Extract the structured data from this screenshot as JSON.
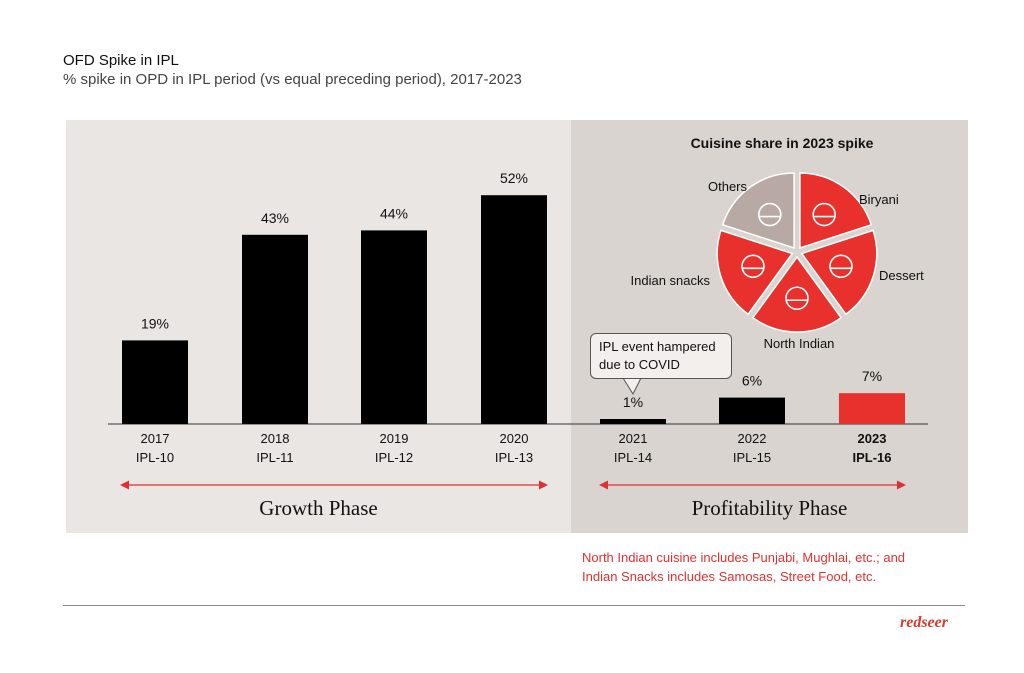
{
  "header": {
    "title": "OFD Spike in IPL",
    "subtitle": "% spike in OPD in IPL period (vs equal preceding period), 2017-2023"
  },
  "colors": {
    "bar": "#000000",
    "highlight": "#e8302c",
    "pie_other": "#b9a9a5",
    "phase_arrow": "#e0312e"
  },
  "chart_data": [
    {
      "type": "bar",
      "title": "OFD Spike in IPL",
      "subtitle": "% spike in OPD in IPL period (vs equal preceding period), 2017-2023",
      "categories": [
        "2017",
        "2018",
        "2019",
        "2020",
        "2021",
        "2022",
        "2023"
      ],
      "category_sublabels": [
        "IPL-10",
        "IPL-11",
        "IPL-12",
        "IPL-13",
        "IPL-14",
        "IPL-15",
        "IPL-16"
      ],
      "values": [
        19,
        43,
        44,
        52,
        1,
        6,
        7
      ],
      "value_labels": [
        "19%",
        "43%",
        "44%",
        "52%",
        "1%",
        "6%",
        "7%"
      ],
      "highlighted_category": "2023",
      "ylim": [
        0,
        60
      ],
      "grid": false,
      "phases": [
        {
          "name": "Growth Phase",
          "categories": [
            "2017",
            "2018",
            "2019",
            "2020"
          ]
        },
        {
          "name": "Profitability Phase",
          "categories": [
            "2021",
            "2022",
            "2023"
          ]
        }
      ],
      "annotation": "IPL event hampered due to COVID"
    },
    {
      "type": "pie",
      "title": "Cuisine share in 2023 spike",
      "labels": [
        "Biryani",
        "Dessert",
        "North Indian",
        "Indian snacks",
        "Others"
      ],
      "icons": [
        "biryani-icon",
        "dessert-icon",
        "north-indian-icon",
        "snacks-icon",
        "others-icon"
      ],
      "values": [
        20,
        20,
        20,
        20,
        20
      ]
    }
  ],
  "footnote": {
    "line1": "North Indian cuisine includes Punjabi, Mughlai, etc.; and",
    "line2": "Indian Snacks includes Samosas, Street Food, etc."
  },
  "logo": "redseer"
}
